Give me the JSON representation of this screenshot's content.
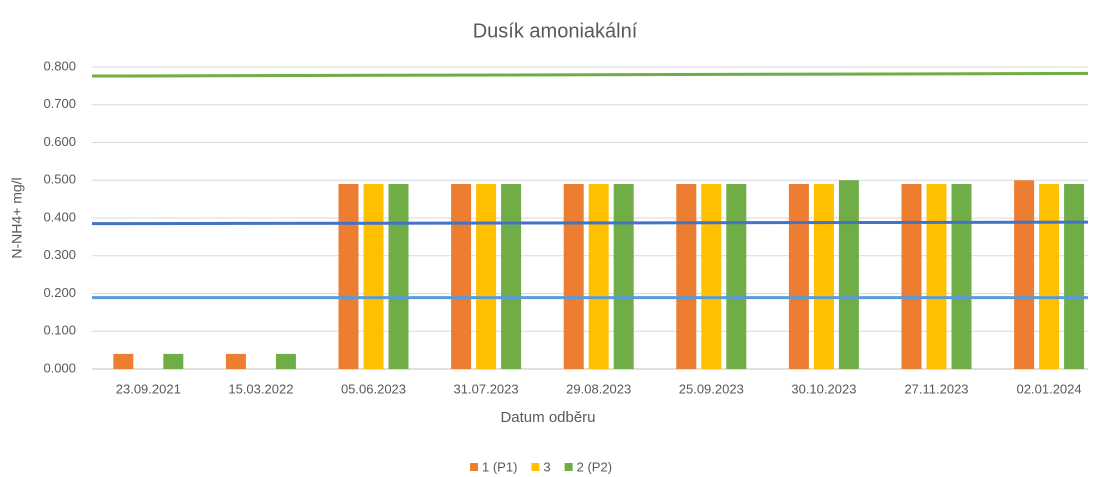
{
  "chart_data": {
    "type": "bar",
    "title": "Dusík amoniakální",
    "x_label": "Datum odběru",
    "y_label": "N-NH4+  mg/l",
    "categories": [
      "23.09.2021",
      "15.03.2022",
      "05.06.2023",
      "31.07.2023",
      "29.08.2023",
      "25.09.2023",
      "30.10.2023",
      "27.11.2023",
      "02.01.2024"
    ],
    "series": [
      {
        "name": "1 (P1)",
        "color": "#ed7d31",
        "values": [
          0.04,
          0.04,
          0.49,
          0.49,
          0.49,
          0.49,
          0.49,
          0.49,
          0.5
        ]
      },
      {
        "name": "3",
        "color": "#ffc000",
        "values": [
          null,
          null,
          0.49,
          0.49,
          0.49,
          0.49,
          0.49,
          0.49,
          0.49
        ]
      },
      {
        "name": "2 (P2)",
        "color": "#70ad47",
        "values": [
          0.04,
          0.04,
          0.49,
          0.49,
          0.49,
          0.49,
          0.5,
          0.49,
          0.49
        ]
      }
    ],
    "reference_lines": [
      {
        "color": "#70ad47",
        "values": [
          0.776,
          0.783
        ]
      },
      {
        "color": "#4472c4",
        "values": [
          0.385,
          0.389
        ]
      },
      {
        "color": "#5b9bd5",
        "values": [
          0.189,
          0.189
        ]
      }
    ],
    "ylim": [
      0,
      0.8
    ],
    "yticks": [
      {
        "value": 0,
        "label": "0.000"
      },
      {
        "value": 0.1,
        "label": "0.100"
      },
      {
        "value": 0.2,
        "label": "0.200"
      },
      {
        "value": 0.3,
        "label": "0.300"
      },
      {
        "value": 0.4,
        "label": "0.400"
      },
      {
        "value": 0.5,
        "label": "0.500"
      },
      {
        "value": 0.6,
        "label": "0.600"
      },
      {
        "value": 0.7,
        "label": "0.700"
      },
      {
        "value": 0.8,
        "label": "0.800"
      }
    ],
    "grid": true,
    "legend": "bottom"
  }
}
